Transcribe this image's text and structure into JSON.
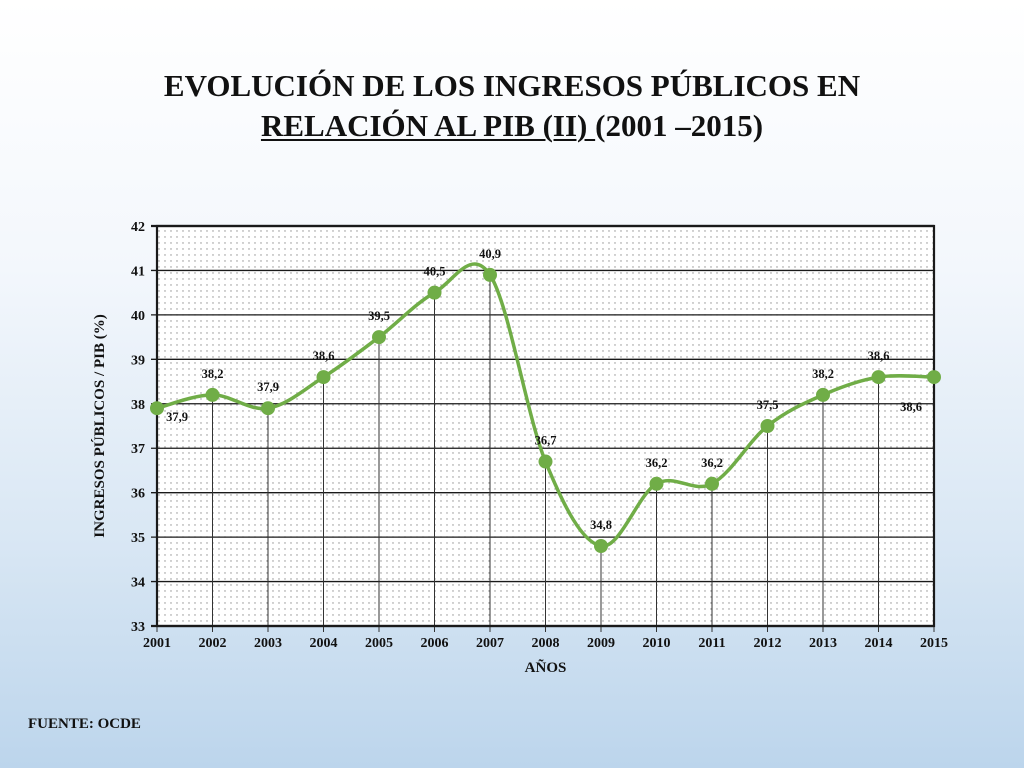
{
  "title": {
    "line1": "EVOLUCIÓN DE LOS INGRESOS PÚBLICOS EN",
    "line2_underlined": "RELACIÓN AL PIB (II) ",
    "line2_rest": " (2001 –2015)"
  },
  "source": "FUENTE: OCDE",
  "colors": {
    "line": "#70ad47",
    "marker": "#70ad47",
    "grid": "#1a1a1a",
    "dots": "#9a9a9a"
  },
  "chart_data": {
    "type": "line",
    "title": "EVOLUCIÓN DE LOS INGRESOS PÚBLICOS EN RELACIÓN AL PIB (II)  (2001 –2015)",
    "xlabel": "AÑOS",
    "ylabel": "INGRESOS PÚBLICOS / PIB (%)",
    "ylim": [
      33,
      42
    ],
    "yticks": [
      "33",
      "34",
      "35",
      "36",
      "37",
      "38",
      "39",
      "40",
      "41",
      "42"
    ],
    "categories": [
      "2001",
      "2002",
      "2003",
      "2004",
      "2005",
      "2006",
      "2007",
      "2008",
      "2009",
      "2010",
      "2011",
      "2012",
      "2013",
      "2014",
      "2015"
    ],
    "values": [
      37.9,
      38.2,
      37.9,
      38.6,
      39.5,
      40.5,
      40.9,
      36.7,
      34.8,
      36.2,
      36.2,
      37.5,
      38.2,
      38.6,
      38.6
    ],
    "data_labels": [
      "37,9",
      "38,2",
      "37,9",
      "38,6",
      "39,5",
      "40,5",
      "40,9",
      "36,7",
      "34,8",
      "36,2",
      "36,2",
      "37,5",
      "38,2",
      "38,6",
      "38,6"
    ],
    "grid": true,
    "smooth": true
  }
}
